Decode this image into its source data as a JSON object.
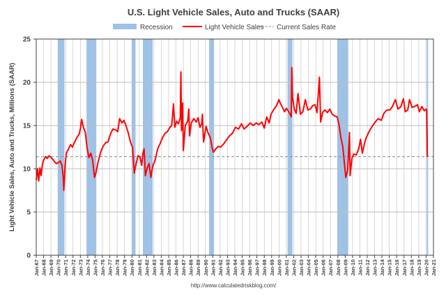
{
  "chart_data": {
    "type": "line",
    "title": "U.S. Light Vehicle Sales, Auto and Trucks (SAAR)",
    "ylabel": "Light Vehicle Sales, Auto and Trucks, Millions (SAAR)",
    "xlabel": "",
    "source": "http://www.calculatedriskblog.com/",
    "ylim": [
      0,
      25
    ],
    "yticks": [
      0,
      5,
      10,
      15,
      20,
      25
    ],
    "xlim": [
      "1967-01",
      "2021-01"
    ],
    "grid": true,
    "legend_position": "top",
    "legend": {
      "recession": "Recession",
      "series": "Light Vehicle Sales",
      "rate": "Current Sales Rate"
    },
    "x_tick_labels": [
      "Jan-67",
      "Jan-68",
      "Jan-69",
      "Jan-70",
      "Jan-71",
      "Jan-72",
      "Jan-73",
      "Jan-74",
      "Jan-75",
      "Jan-76",
      "Jan-77",
      "Jan-78",
      "Jan-79",
      "Jan-80",
      "Jan-81",
      "Jan-82",
      "Jan-83",
      "Jan-84",
      "Jan-85",
      "Jan-86",
      "Jan-87",
      "Jan-88",
      "Jan-89",
      "Jan-90",
      "Jan-91",
      "Jan-92",
      "Jan-93",
      "Jan-94",
      "Jan-95",
      "Jan-96",
      "Jan-97",
      "Jan-98",
      "Jan-99",
      "Jan-00",
      "Jan-01",
      "Jan-02",
      "Jan-03",
      "Jan-04",
      "Jan-05",
      "Jan-06",
      "Jan-07",
      "Jan-08",
      "Jan-09",
      "Jan-10",
      "Jan-11",
      "Jan-12",
      "Jan-13",
      "Jan-14",
      "Jan-15",
      "Jan-16",
      "Jan-17",
      "Jan-18",
      "Jan-19",
      "Jan-20",
      "Jan-21"
    ],
    "recessions": [
      {
        "start": "1969-12",
        "end": "1970-11"
      },
      {
        "start": "1973-11",
        "end": "1975-03"
      },
      {
        "start": "1980-01",
        "end": "1980-07"
      },
      {
        "start": "1981-07",
        "end": "1982-11"
      },
      {
        "start": "1990-07",
        "end": "1991-03"
      },
      {
        "start": "2001-03",
        "end": "2001-11"
      },
      {
        "start": "2007-12",
        "end": "2009-06"
      },
      {
        "start": "2020-02",
        "end": "2020-04"
      }
    ],
    "current_sales_rate": 11.4,
    "series": [
      {
        "name": "Light Vehicle Sales",
        "color": "#ff0000",
        "points": [
          [
            "1967-01",
            8.7
          ],
          [
            "1967-03",
            10.0
          ],
          [
            "1967-05",
            8.6
          ],
          [
            "1967-07",
            10.1
          ],
          [
            "1967-09",
            9.2
          ],
          [
            "1967-11",
            10.5
          ],
          [
            "1968-01",
            11.0
          ],
          [
            "1968-04",
            11.4
          ],
          [
            "1968-07",
            11.2
          ],
          [
            "1968-10",
            11.5
          ],
          [
            "1969-01",
            11.3
          ],
          [
            "1969-04",
            11.1
          ],
          [
            "1969-07",
            10.8
          ],
          [
            "1969-10",
            10.6
          ],
          [
            "1970-01",
            10.7
          ],
          [
            "1970-04",
            10.9
          ],
          [
            "1970-07",
            10.4
          ],
          [
            "1970-09",
            9.0
          ],
          [
            "1970-10",
            7.5
          ],
          [
            "1970-12",
            10.2
          ],
          [
            "1971-02",
            11.8
          ],
          [
            "1971-05",
            12.2
          ],
          [
            "1971-09",
            12.8
          ],
          [
            "1971-12",
            12.5
          ],
          [
            "1972-03",
            13.0
          ],
          [
            "1972-07",
            13.6
          ],
          [
            "1972-11",
            14.0
          ],
          [
            "1973-01",
            14.6
          ],
          [
            "1973-03",
            15.7
          ],
          [
            "1973-06",
            14.8
          ],
          [
            "1973-09",
            14.2
          ],
          [
            "1973-12",
            12.4
          ],
          [
            "1974-03",
            11.3
          ],
          [
            "1974-06",
            11.8
          ],
          [
            "1974-09",
            11.0
          ],
          [
            "1974-12",
            9.0
          ],
          [
            "1975-02",
            9.4
          ],
          [
            "1975-06",
            10.8
          ],
          [
            "1975-10",
            11.9
          ],
          [
            "1976-02",
            12.6
          ],
          [
            "1976-06",
            13.0
          ],
          [
            "1976-10",
            13.1
          ],
          [
            "1977-02",
            14.0
          ],
          [
            "1977-06",
            14.6
          ],
          [
            "1977-10",
            14.5
          ],
          [
            "1978-02",
            14.3
          ],
          [
            "1978-05",
            15.8
          ],
          [
            "1978-09",
            15.3
          ],
          [
            "1978-12",
            15.6
          ],
          [
            "1979-03",
            15.1
          ],
          [
            "1979-07",
            14.2
          ],
          [
            "1979-11",
            13.0
          ],
          [
            "1980-02",
            12.5
          ],
          [
            "1980-05",
            9.5
          ],
          [
            "1980-08",
            10.6
          ],
          [
            "1980-11",
            11.5
          ],
          [
            "1981-02",
            11.4
          ],
          [
            "1981-05",
            10.4
          ],
          [
            "1981-07",
            11.8
          ],
          [
            "1981-09",
            12.3
          ],
          [
            "1981-11",
            9.2
          ],
          [
            "1982-02",
            10.1
          ],
          [
            "1982-05",
            10.6
          ],
          [
            "1982-08",
            9.0
          ],
          [
            "1982-11",
            10.3
          ],
          [
            "1983-03",
            11.0
          ],
          [
            "1983-07",
            12.3
          ],
          [
            "1983-11",
            12.9
          ],
          [
            "1984-03",
            13.6
          ],
          [
            "1984-07",
            14.1
          ],
          [
            "1984-11",
            14.3
          ],
          [
            "1985-03",
            14.8
          ],
          [
            "1985-06",
            15.0
          ],
          [
            "1985-09",
            17.5
          ],
          [
            "1985-11",
            14.8
          ],
          [
            "1986-02",
            15.5
          ],
          [
            "1986-05",
            15.2
          ],
          [
            "1986-08",
            15.9
          ],
          [
            "1986-09",
            21.2
          ],
          [
            "1986-10",
            14.4
          ],
          [
            "1986-12",
            17.6
          ],
          [
            "1987-01",
            12.1
          ],
          [
            "1987-04",
            15.0
          ],
          [
            "1987-08",
            15.5
          ],
          [
            "1987-10",
            16.9
          ],
          [
            "1987-11",
            13.8
          ],
          [
            "1988-02",
            15.3
          ],
          [
            "1988-06",
            15.8
          ],
          [
            "1988-10",
            15.4
          ],
          [
            "1989-01",
            15.9
          ],
          [
            "1989-04",
            14.8
          ],
          [
            "1989-07",
            15.2
          ],
          [
            "1989-08",
            16.3
          ],
          [
            "1989-10",
            13.1
          ],
          [
            "1990-02",
            14.9
          ],
          [
            "1990-05",
            14.2
          ],
          [
            "1990-09",
            13.6
          ],
          [
            "1990-12",
            12.4
          ],
          [
            "1991-02",
            11.9
          ],
          [
            "1991-06",
            12.3
          ],
          [
            "1991-10",
            12.6
          ],
          [
            "1992-02",
            12.5
          ],
          [
            "1992-07",
            12.9
          ],
          [
            "1992-12",
            13.4
          ],
          [
            "1993-04",
            13.8
          ],
          [
            "1993-09",
            14.1
          ],
          [
            "1994-02",
            14.8
          ],
          [
            "1994-07",
            14.6
          ],
          [
            "1994-12",
            15.2
          ],
          [
            "1995-04",
            14.6
          ],
          [
            "1995-09",
            14.9
          ],
          [
            "1996-02",
            15.3
          ],
          [
            "1996-07",
            15.0
          ],
          [
            "1996-12",
            15.3
          ],
          [
            "1997-04",
            15.1
          ],
          [
            "1997-09",
            15.4
          ],
          [
            "1998-01",
            14.7
          ],
          [
            "1998-05",
            16.0
          ],
          [
            "1998-09",
            15.3
          ],
          [
            "1998-12",
            16.3
          ],
          [
            "1999-04",
            16.8
          ],
          [
            "1999-09",
            17.3
          ],
          [
            "2000-01",
            18.0
          ],
          [
            "2000-03",
            17.6
          ],
          [
            "2000-06",
            17.2
          ],
          [
            "2000-10",
            16.6
          ],
          [
            "2001-01",
            17.0
          ],
          [
            "2001-04",
            16.7
          ],
          [
            "2001-08",
            16.2
          ],
          [
            "2001-09",
            16.0
          ],
          [
            "2001-10",
            21.7
          ],
          [
            "2001-11",
            18.3
          ],
          [
            "2002-02",
            16.9
          ],
          [
            "2002-05",
            16.4
          ],
          [
            "2002-08",
            18.7
          ],
          [
            "2002-12",
            16.3
          ],
          [
            "2003-04",
            16.6
          ],
          [
            "2003-08",
            18.0
          ],
          [
            "2003-12",
            16.8
          ],
          [
            "2004-04",
            16.9
          ],
          [
            "2004-08",
            17.3
          ],
          [
            "2004-12",
            17.4
          ],
          [
            "2005-03",
            16.5
          ],
          [
            "2005-07",
            20.6
          ],
          [
            "2005-09",
            15.4
          ],
          [
            "2005-12",
            16.5
          ],
          [
            "2006-04",
            16.8
          ],
          [
            "2006-08",
            16.5
          ],
          [
            "2006-12",
            16.9
          ],
          [
            "2007-04",
            16.3
          ],
          [
            "2007-08",
            16.1
          ],
          [
            "2007-12",
            16.0
          ],
          [
            "2008-03",
            15.1
          ],
          [
            "2008-06",
            13.6
          ],
          [
            "2008-09",
            12.6
          ],
          [
            "2008-12",
            10.4
          ],
          [
            "2009-02",
            9.0
          ],
          [
            "2009-05",
            9.8
          ],
          [
            "2009-08",
            14.2
          ],
          [
            "2009-09",
            9.2
          ],
          [
            "2009-12",
            11.2
          ],
          [
            "2010-03",
            11.7
          ],
          [
            "2010-07",
            11.6
          ],
          [
            "2010-11",
            12.3
          ],
          [
            "2011-02",
            13.4
          ],
          [
            "2011-05",
            11.8
          ],
          [
            "2011-09",
            13.1
          ],
          [
            "2011-12",
            13.7
          ],
          [
            "2012-04",
            14.3
          ],
          [
            "2012-09",
            14.9
          ],
          [
            "2013-02",
            15.4
          ],
          [
            "2013-07",
            15.8
          ],
          [
            "2013-12",
            15.6
          ],
          [
            "2014-04",
            16.4
          ],
          [
            "2014-09",
            16.8
          ],
          [
            "2015-02",
            16.8
          ],
          [
            "2015-06",
            17.2
          ],
          [
            "2015-11",
            18.0
          ],
          [
            "2016-03",
            16.9
          ],
          [
            "2016-08",
            17.2
          ],
          [
            "2016-12",
            18.1
          ],
          [
            "2017-03",
            16.6
          ],
          [
            "2017-07",
            16.8
          ],
          [
            "2017-10",
            18.0
          ],
          [
            "2018-02",
            17.1
          ],
          [
            "2018-06",
            17.2
          ],
          [
            "2018-11",
            17.4
          ],
          [
            "2019-02",
            16.6
          ],
          [
            "2019-06",
            17.2
          ],
          [
            "2019-10",
            16.7
          ],
          [
            "2020-01",
            16.9
          ],
          [
            "2020-02",
            16.8
          ],
          [
            "2020-03",
            11.4
          ]
        ]
      }
    ]
  },
  "colors": {
    "recession": "#9ec2e8",
    "line": "#ff0000",
    "rate_line": "#888888",
    "grid": "#bdbdbd",
    "axis": "#404040",
    "title": "#404040"
  }
}
